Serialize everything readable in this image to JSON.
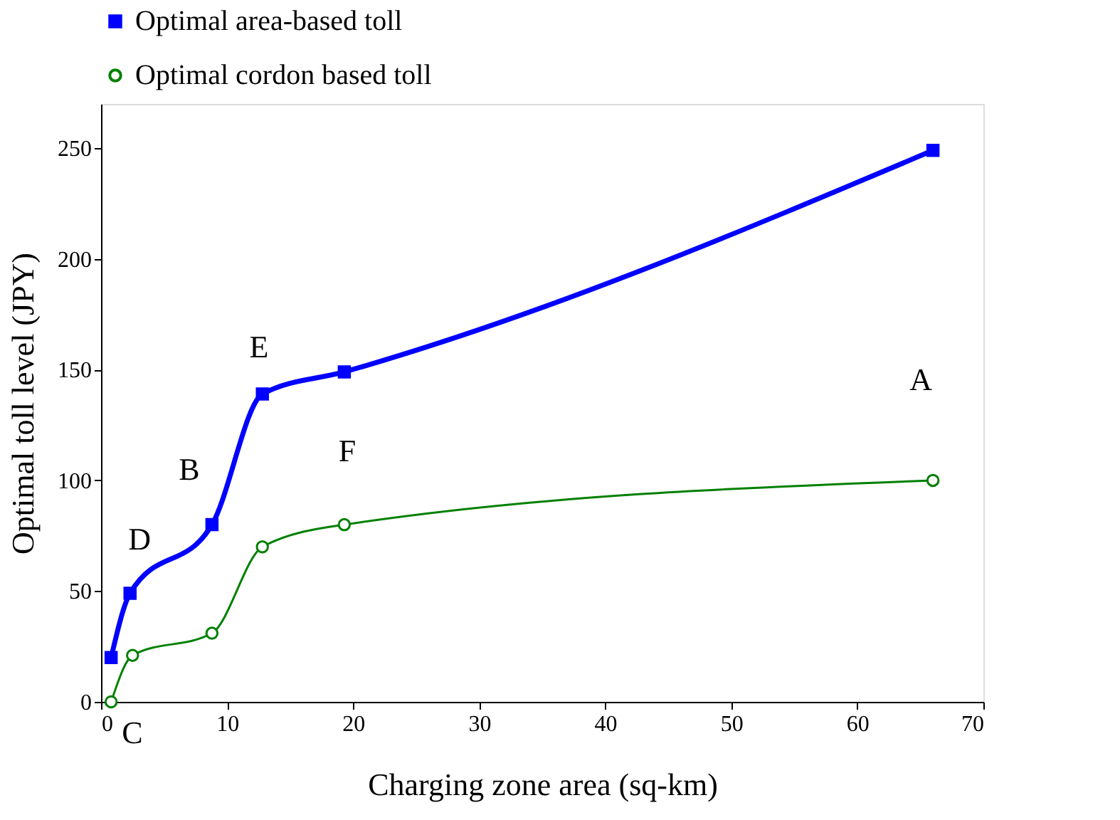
{
  "chart_data": {
    "type": "line",
    "xlabel": "Charging zone area (sq-km)",
    "ylabel": "Optimal toll level (JPY)",
    "xlim": [
      0,
      70
    ],
    "xticks": [
      0,
      10,
      20,
      30,
      40,
      50,
      60,
      70
    ],
    "ylim": [
      0,
      270
    ],
    "yticks": [
      0,
      50,
      100,
      150,
      200,
      250
    ],
    "grid": false,
    "legend": "top",
    "line_style": "solid",
    "series": [
      {
        "name": "Optimal area-based toll",
        "color": "#0000ff",
        "marker": "square",
        "x": [
          0.8,
          2.3,
          8.8,
          12.8,
          19.3,
          66
        ],
        "values": [
          20,
          49,
          80,
          139,
          149,
          249
        ]
      },
      {
        "name": "Optimal cordon based toll",
        "color": "#008000",
        "marker": "circle",
        "x": [
          0.8,
          2.5,
          8.8,
          12.8,
          19.3,
          66
        ],
        "values": [
          0,
          21,
          31,
          70,
          80,
          100
        ]
      }
    ],
    "annotations": [
      "A",
      "B",
      "C",
      "D",
      "E",
      "F"
    ]
  }
}
